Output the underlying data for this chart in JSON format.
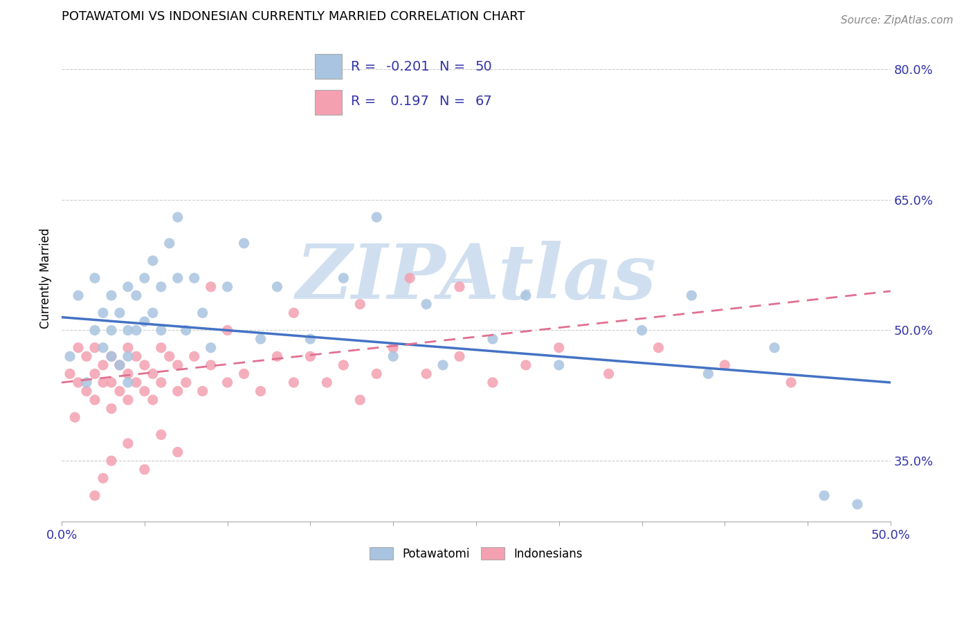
{
  "title": "POTAWATOMI VS INDONESIAN CURRENTLY MARRIED CORRELATION CHART",
  "source_text": "Source: ZipAtlas.com",
  "ylabel": "Currently Married",
  "xlim": [
    0.0,
    0.5
  ],
  "ylim": [
    0.28,
    0.84
  ],
  "right_ytick_labels": [
    "35.0%",
    "50.0%",
    "65.0%",
    "80.0%"
  ],
  "right_ytick_values": [
    0.35,
    0.5,
    0.65,
    0.8
  ],
  "blue_R": -0.201,
  "blue_N": 50,
  "pink_R": 0.197,
  "pink_N": 67,
  "blue_color": "#a8c4e0",
  "pink_color": "#f4a0b0",
  "blue_line_color": "#4472c4",
  "pink_line_color": "#e07090",
  "text_color": "#3333aa",
  "watermark_color": "#d0dff0",
  "legend_label_blue": "Potawatomi",
  "legend_label_pink": "Indonesians",
  "blue_scatter_x": [
    0.005,
    0.01,
    0.015,
    0.02,
    0.02,
    0.025,
    0.025,
    0.03,
    0.03,
    0.03,
    0.035,
    0.035,
    0.04,
    0.04,
    0.04,
    0.04,
    0.045,
    0.045,
    0.05,
    0.05,
    0.055,
    0.055,
    0.06,
    0.06,
    0.065,
    0.07,
    0.07,
    0.075,
    0.08,
    0.085,
    0.09,
    0.1,
    0.11,
    0.12,
    0.13,
    0.15,
    0.17,
    0.2,
    0.23,
    0.26,
    0.3,
    0.35,
    0.39,
    0.43,
    0.46,
    0.48,
    0.22,
    0.28,
    0.19,
    0.38
  ],
  "blue_scatter_y": [
    0.47,
    0.54,
    0.44,
    0.5,
    0.56,
    0.48,
    0.52,
    0.5,
    0.47,
    0.54,
    0.52,
    0.46,
    0.55,
    0.5,
    0.47,
    0.44,
    0.54,
    0.5,
    0.56,
    0.51,
    0.58,
    0.52,
    0.55,
    0.5,
    0.6,
    0.63,
    0.56,
    0.5,
    0.56,
    0.52,
    0.48,
    0.55,
    0.6,
    0.49,
    0.55,
    0.49,
    0.56,
    0.47,
    0.46,
    0.49,
    0.46,
    0.5,
    0.45,
    0.48,
    0.31,
    0.3,
    0.53,
    0.54,
    0.63,
    0.54
  ],
  "pink_scatter_x": [
    0.005,
    0.008,
    0.01,
    0.01,
    0.015,
    0.015,
    0.02,
    0.02,
    0.02,
    0.025,
    0.025,
    0.03,
    0.03,
    0.03,
    0.035,
    0.035,
    0.04,
    0.04,
    0.04,
    0.045,
    0.045,
    0.05,
    0.05,
    0.055,
    0.055,
    0.06,
    0.06,
    0.065,
    0.07,
    0.07,
    0.075,
    0.08,
    0.085,
    0.09,
    0.1,
    0.11,
    0.12,
    0.13,
    0.14,
    0.15,
    0.16,
    0.17,
    0.18,
    0.19,
    0.2,
    0.22,
    0.24,
    0.26,
    0.28,
    0.3,
    0.33,
    0.36,
    0.4,
    0.44,
    0.24,
    0.18,
    0.09,
    0.1,
    0.14,
    0.21,
    0.06,
    0.07,
    0.05,
    0.04,
    0.03,
    0.025,
    0.02
  ],
  "pink_scatter_y": [
    0.45,
    0.4,
    0.44,
    0.48,
    0.43,
    0.47,
    0.42,
    0.45,
    0.48,
    0.44,
    0.46,
    0.41,
    0.44,
    0.47,
    0.43,
    0.46,
    0.42,
    0.45,
    0.48,
    0.44,
    0.47,
    0.43,
    0.46,
    0.42,
    0.45,
    0.48,
    0.44,
    0.47,
    0.43,
    0.46,
    0.44,
    0.47,
    0.43,
    0.46,
    0.44,
    0.45,
    0.43,
    0.47,
    0.44,
    0.47,
    0.44,
    0.46,
    0.42,
    0.45,
    0.48,
    0.45,
    0.47,
    0.44,
    0.46,
    0.48,
    0.45,
    0.48,
    0.46,
    0.44,
    0.55,
    0.53,
    0.55,
    0.5,
    0.52,
    0.56,
    0.38,
    0.36,
    0.34,
    0.37,
    0.35,
    0.33,
    0.31
  ]
}
